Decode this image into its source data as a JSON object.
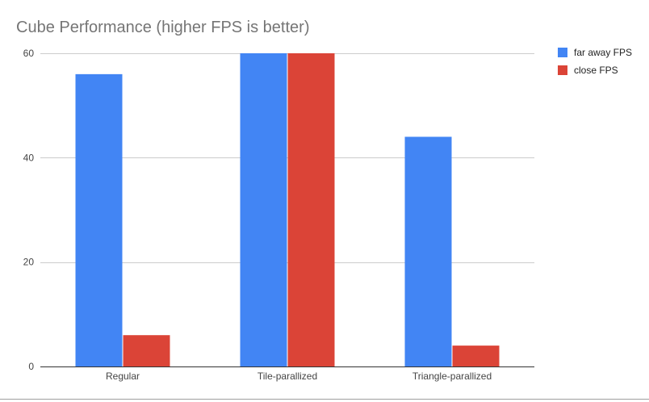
{
  "chart_data": {
    "type": "bar",
    "title": "Cube Performance (higher FPS is better)",
    "xlabel": "",
    "ylabel": "",
    "categories": [
      "Regular",
      "Tile-parallized",
      "Triangle-parallized"
    ],
    "series": [
      {
        "name": "far away FPS",
        "color": "#4285f4",
        "values": [
          56,
          60,
          44
        ]
      },
      {
        "name": "close FPS",
        "color": "#db4437",
        "values": [
          6,
          60,
          4
        ]
      }
    ],
    "ylim": [
      0,
      60
    ],
    "yticks": [
      0,
      20,
      40,
      60
    ],
    "grid": true,
    "legend": "right"
  }
}
